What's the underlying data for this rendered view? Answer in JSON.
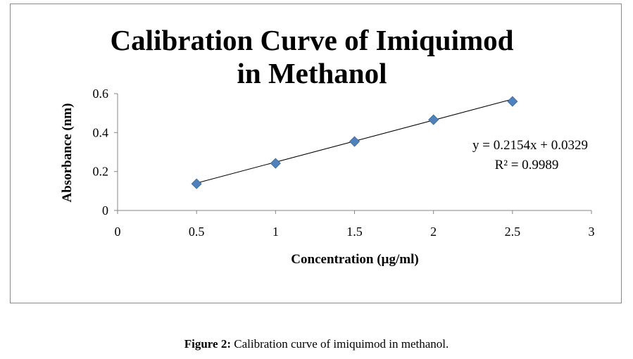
{
  "chart_data": {
    "type": "scatter",
    "title_lines": [
      "Calibration  Curve  of Imiquimod",
      "in Methanol"
    ],
    "xlabel": "Concentration (µg/ml)",
    "ylabel": "Absorbance  (nm)",
    "xlim": [
      0,
      3
    ],
    "ylim": [
      0,
      0.6
    ],
    "xticks": [
      "0",
      "0.5",
      "1",
      "1.5",
      "2",
      "2.5",
      "3"
    ],
    "xtick_values": [
      0,
      0.5,
      1,
      1.5,
      2,
      2.5,
      3
    ],
    "yticks": [
      "0",
      "0.2",
      "0.4",
      "0.6"
    ],
    "ytick_values": [
      0,
      0.2,
      0.4,
      0.6
    ],
    "grid": false,
    "series": [
      {
        "name": "Absorbance",
        "x": [
          0.5,
          1,
          1.5,
          2,
          2.5
        ],
        "y": [
          0.137,
          0.242,
          0.354,
          0.466,
          0.56
        ],
        "color": "#4f81bd",
        "marker": "diamond"
      }
    ],
    "trendline": {
      "slope": 0.2154,
      "intercept": 0.0329,
      "x_range": [
        0.5,
        2.5
      ],
      "color": "#000000"
    },
    "annotations": {
      "equation": "y = 0.2154x + 0.0329",
      "r_squared": "R² = 0.9989"
    }
  },
  "caption": {
    "label": "Figure 2:",
    "text": " Calibration curve of imiquimod in methanol."
  }
}
